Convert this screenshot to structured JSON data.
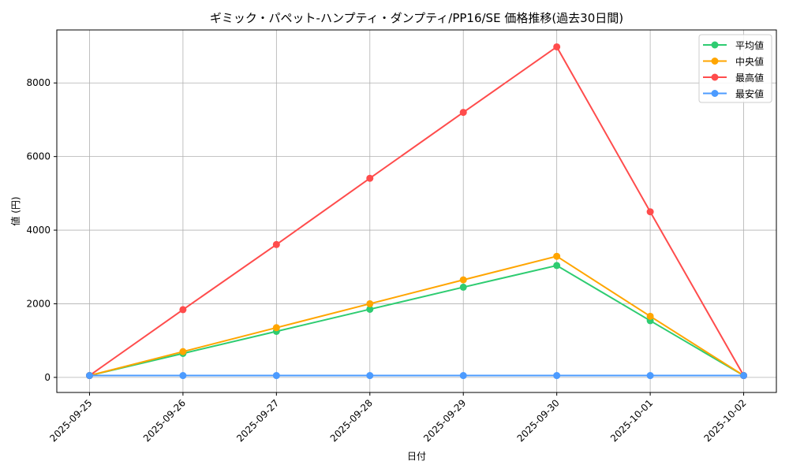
{
  "chart_data": {
    "type": "line",
    "title": "ギミック・パペット-ハンプティ・ダンプティ/PP16/SE 価格推移(過去30日間)",
    "xlabel": "日付",
    "ylabel": "値 (円)",
    "categories": [
      "2025-09-25",
      "2025-09-26",
      "2025-09-27",
      "2025-09-28",
      "2025-09-29",
      "2025-09-30",
      "2025-10-01",
      "2025-10-02"
    ],
    "yticks": [
      0,
      2000,
      4000,
      6000,
      8000
    ],
    "ylim": [
      -410,
      9440
    ],
    "grid": true,
    "legend_position": "top-right",
    "series": [
      {
        "name": "平均値",
        "color": "#2ecc71",
        "values": [
          50,
          650,
          1250,
          1850,
          2450,
          3040,
          1540,
          50
        ]
      },
      {
        "name": "中央値",
        "color": "#ffa500",
        "values": [
          50,
          700,
          1350,
          2000,
          2650,
          3290,
          1660,
          50
        ]
      },
      {
        "name": "最高値",
        "color": "#ff4c4c",
        "values": [
          50,
          1840,
          3610,
          5410,
          7200,
          8980,
          4500,
          50
        ]
      },
      {
        "name": "最安値",
        "color": "#4c9bff",
        "values": [
          50,
          50,
          50,
          50,
          50,
          50,
          50,
          50
        ]
      }
    ]
  }
}
